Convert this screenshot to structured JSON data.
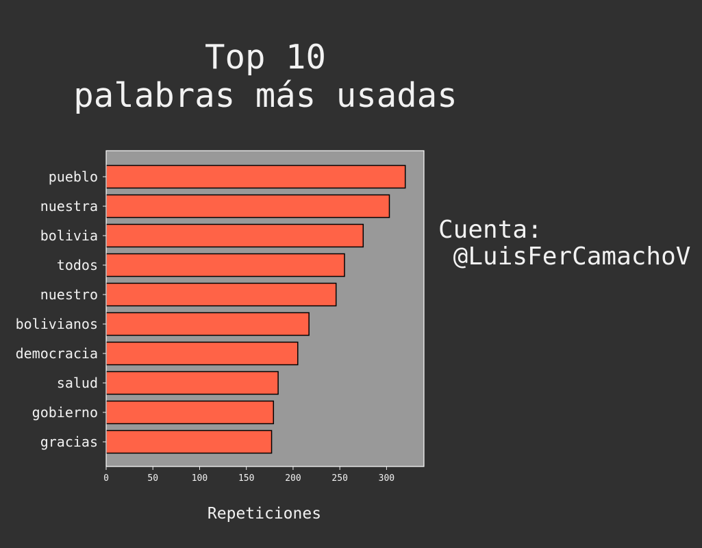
{
  "title": {
    "line1": "Top 10",
    "line2": "palabras más usadas"
  },
  "side_note": {
    "line1": "Cuenta:",
    "line2": " @LuisFerCamachoV"
  },
  "colors": {
    "background": "#303030",
    "plot_background": "#999999",
    "bar_fill": "#ff6347",
    "bar_edge": "#000000",
    "text": "#f2f2f2"
  },
  "chart_data": {
    "type": "bar",
    "orientation": "horizontal",
    "title": "Top 10\npalabras más usadas",
    "xlabel": "Repeticiones",
    "ylabel": "",
    "xlim": [
      0,
      340
    ],
    "xticks": [
      0,
      50,
      100,
      150,
      200,
      250,
      300
    ],
    "grid": false,
    "categories": [
      "pueblo",
      "nuestra",
      "bolivia",
      "todos",
      "nuestro",
      "bolivianos",
      "democracia",
      "salud",
      "gobierno",
      "gracias"
    ],
    "values": [
      320,
      303,
      275,
      255,
      246,
      217,
      205,
      184,
      179,
      177
    ]
  }
}
